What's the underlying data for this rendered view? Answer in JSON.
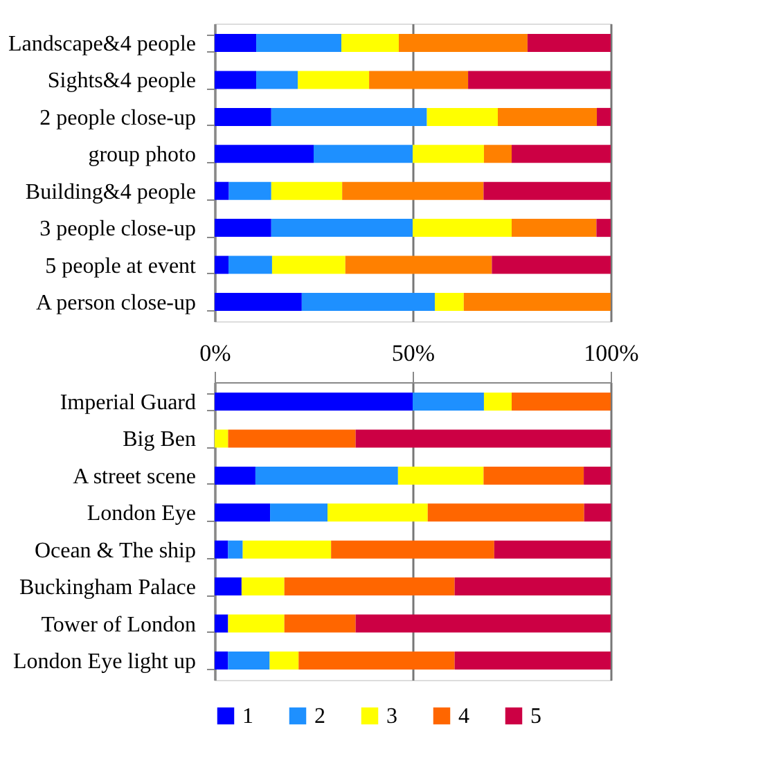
{
  "chart_data": [
    {
      "type": "bar",
      "orientation": "horizontal",
      "stacked": true,
      "categories": [
        "Landscape&4 people",
        "Sights&4 people",
        "2 people close-up",
        "group photo",
        "Building&4 people",
        "3 people close-up",
        "5 people at event",
        "A person close-up"
      ],
      "series": [
        {
          "color": "#0000ff",
          "values": [
            10.5,
            10.5,
            14.3,
            25,
            3.6,
            14.3,
            3.5,
            22
          ]
        },
        {
          "color": "#1e90ff",
          "values": [
            21.5,
            10.5,
            39.3,
            25,
            10.7,
            35.7,
            11,
            33.6
          ]
        },
        {
          "color": "#ffff00",
          "values": [
            14.5,
            18,
            17.9,
            18,
            17.9,
            25,
            18.5,
            7.3
          ]
        },
        {
          "color": "#ff8000",
          "values": [
            32.5,
            25,
            25,
            7,
            35.7,
            21.4,
            37,
            37.1
          ]
        },
        {
          "color": "#cc0044",
          "values": [
            21,
            36,
            3.5,
            25,
            32.1,
            3.6,
            30,
            0
          ]
        }
      ],
      "xlim": [
        0,
        100
      ],
      "xticks": [
        0,
        50,
        100
      ],
      "tick_labels": "y",
      "grid": "x"
    },
    {
      "type": "bar",
      "orientation": "horizontal",
      "stacked": true,
      "categories": [
        "Imperial Guard",
        "Big Ben",
        "A street scene",
        "London Eye",
        "Ocean & The ship",
        "Buckingham Palace",
        "Tower of London",
        "London Eye light up"
      ],
      "series": [
        {
          "name": "1",
          "color": "#0000ff",
          "values": [
            50,
            0,
            10.3,
            14,
            3.4,
            6.8,
            3.4,
            3.4
          ]
        },
        {
          "name": "2",
          "color": "#1e90ff",
          "values": [
            18,
            0,
            36,
            14.5,
            3.7,
            0,
            0,
            10.5
          ]
        },
        {
          "name": "3",
          "color": "#ffff00",
          "values": [
            7,
            3.4,
            21.6,
            25.3,
            22.3,
            10.8,
            14.2,
            7.3
          ]
        },
        {
          "name": "4",
          "color": "#ff6600",
          "values": [
            25,
            32.2,
            25.3,
            39.5,
            41.2,
            43,
            18,
            39.4
          ]
        },
        {
          "name": "5",
          "color": "#cc0044",
          "values": [
            0,
            64.4,
            6.8,
            6.8,
            29.4,
            39.4,
            64.4,
            39.4
          ]
        }
      ],
      "xlim": [
        0,
        100
      ],
      "xticks": [
        {
          "value": 0,
          "label": "0%"
        },
        {
          "value": 50,
          "label": "50%"
        },
        {
          "value": 100,
          "label": "100%"
        }
      ],
      "grid": "x",
      "legend": "bottom"
    }
  ]
}
